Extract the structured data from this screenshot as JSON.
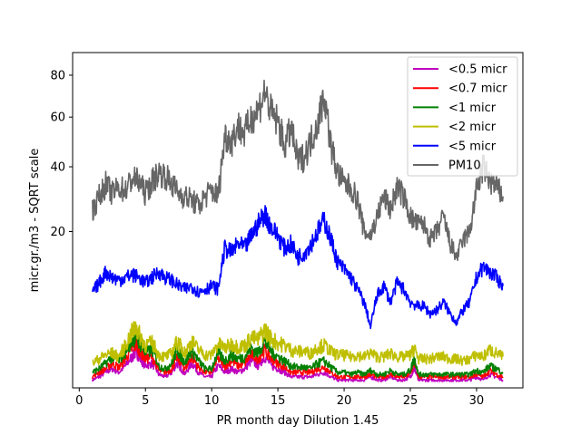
{
  "chart_data": {
    "type": "line",
    "xlabel": "PR month day  Dilution 1.45",
    "ylabel": "micr.gr./m3 - SQRT scale",
    "xlim": [
      -0.5,
      33.5
    ],
    "ylim": [
      0,
      92
    ],
    "y_scale": "sqrt",
    "xticks": [
      0,
      5,
      10,
      15,
      20,
      25,
      30
    ],
    "yticks": [
      20,
      40,
      60,
      80
    ],
    "grid": false,
    "legend_position": "top-right",
    "series": [
      {
        "name": "<0.5 micr",
        "color": "#bf00bf",
        "x": [
          1,
          1.5,
          2,
          2.5,
          3,
          3.5,
          4,
          4.3,
          4.6,
          5,
          5.5,
          6,
          6.5,
          7,
          7.4,
          7.7,
          8,
          8.5,
          9,
          9.5,
          10,
          10.5,
          11,
          11.5,
          12,
          12.5,
          13,
          13.5,
          14,
          14.5,
          15,
          15.5,
          16,
          16.5,
          17,
          17.5,
          18,
          18.5,
          19,
          19.5,
          20,
          20.5,
          21,
          21.5,
          22,
          22.5,
          23,
          23.5,
          24,
          24.5,
          25,
          25.3,
          25.6,
          26,
          26.5,
          27,
          27.5,
          28,
          28.5,
          29,
          29.5,
          30,
          30.5,
          31,
          31.5,
          32
        ],
        "values": [
          0.05,
          0.1,
          0.2,
          0.3,
          0.2,
          0.4,
          0.8,
          1.1,
          0.7,
          0.4,
          0.5,
          0.15,
          0.1,
          0.2,
          0.5,
          0.3,
          0.15,
          0.5,
          0.2,
          0.1,
          0.1,
          0.4,
          0.2,
          0.3,
          0.2,
          0.3,
          0.6,
          0.4,
          0.8,
          0.4,
          0.3,
          0.2,
          0.1,
          0.1,
          0.1,
          0.1,
          0.15,
          0.2,
          0.1,
          0.05,
          0.05,
          0.05,
          0.05,
          0.05,
          0.1,
          0.05,
          0.05,
          0.1,
          0.05,
          0.05,
          0.1,
          0.3,
          0.05,
          0.05,
          0.05,
          0.05,
          0.05,
          0.05,
          0.05,
          0.05,
          0.05,
          0.1,
          0.05,
          0.15,
          0.1,
          0.05
        ]
      },
      {
        "name": "<0.7 micr",
        "color": "#ff0000",
        "x": [
          1,
          1.5,
          2,
          2.5,
          3,
          3.5,
          4,
          4.3,
          4.6,
          5,
          5.5,
          6,
          6.5,
          7,
          7.4,
          7.7,
          8,
          8.5,
          9,
          9.5,
          10,
          10.5,
          11,
          11.5,
          12,
          12.5,
          13,
          13.5,
          14,
          14.5,
          15,
          15.5,
          16,
          16.5,
          17,
          17.5,
          18,
          18.5,
          19,
          19.5,
          20,
          20.5,
          21,
          21.5,
          22,
          22.5,
          23,
          23.5,
          24,
          24.5,
          25,
          25.3,
          25.6,
          26,
          26.5,
          27,
          27.5,
          28,
          28.5,
          29,
          29.5,
          30,
          30.5,
          31,
          31.5,
          32
        ],
        "values": [
          0.1,
          0.2,
          0.3,
          0.5,
          0.35,
          0.7,
          1.3,
          1.6,
          1.1,
          0.7,
          0.8,
          0.25,
          0.2,
          0.3,
          0.8,
          0.5,
          0.3,
          0.8,
          0.35,
          0.2,
          0.2,
          0.7,
          0.4,
          0.6,
          0.4,
          0.5,
          0.9,
          0.7,
          1.2,
          0.7,
          0.5,
          0.35,
          0.2,
          0.2,
          0.2,
          0.2,
          0.3,
          0.35,
          0.2,
          0.1,
          0.1,
          0.1,
          0.1,
          0.1,
          0.15,
          0.1,
          0.1,
          0.15,
          0.1,
          0.1,
          0.15,
          0.5,
          0.1,
          0.1,
          0.1,
          0.1,
          0.1,
          0.1,
          0.1,
          0.1,
          0.1,
          0.15,
          0.1,
          0.25,
          0.15,
          0.1
        ]
      },
      {
        "name": "<1 micr",
        "color": "#008000",
        "x": [
          1,
          1.5,
          2,
          2.5,
          3,
          3.5,
          4,
          4.3,
          4.6,
          5,
          5.5,
          6,
          6.5,
          7,
          7.4,
          7.7,
          8,
          8.5,
          9,
          9.5,
          10,
          10.5,
          11,
          11.5,
          12,
          12.5,
          13,
          13.5,
          14,
          14.5,
          15,
          15.5,
          16,
          16.5,
          17,
          17.5,
          18,
          18.5,
          19,
          19.5,
          20,
          20.5,
          21,
          21.5,
          22,
          22.5,
          23,
          23.5,
          24,
          24.5,
          25,
          25.3,
          25.6,
          26,
          26.5,
          27,
          27.5,
          28,
          28.5,
          29,
          29.5,
          30,
          30.5,
          31,
          31.5,
          32
        ],
        "values": [
          0.2,
          0.3,
          0.5,
          0.8,
          0.6,
          1.1,
          1.9,
          2.3,
          1.6,
          1.0,
          1.2,
          0.4,
          0.3,
          0.5,
          1.2,
          0.8,
          0.5,
          1.2,
          0.6,
          0.3,
          0.3,
          1.0,
          0.6,
          0.9,
          0.7,
          0.8,
          1.3,
          1.0,
          1.8,
          1.1,
          0.8,
          0.6,
          0.4,
          0.35,
          0.35,
          0.3,
          0.5,
          0.6,
          0.35,
          0.2,
          0.2,
          0.15,
          0.2,
          0.15,
          0.25,
          0.15,
          0.15,
          0.25,
          0.15,
          0.15,
          0.25,
          0.7,
          0.15,
          0.15,
          0.15,
          0.15,
          0.15,
          0.15,
          0.15,
          0.15,
          0.15,
          0.25,
          0.2,
          0.4,
          0.3,
          0.2
        ]
      },
      {
        "name": "<2 micr",
        "color": "#bfbf00",
        "x": [
          1,
          1.5,
          2,
          2.5,
          3,
          3.5,
          4,
          4.3,
          4.6,
          5,
          5.5,
          6,
          6.5,
          7,
          7.4,
          7.7,
          8,
          8.5,
          9,
          9.5,
          10,
          10.5,
          11,
          11.5,
          12,
          12.5,
          13,
          13.5,
          14,
          14.5,
          15,
          15.5,
          16,
          16.5,
          17,
          17.5,
          18,
          18.5,
          19,
          19.5,
          20,
          20.5,
          21,
          21.5,
          22,
          22.5,
          23,
          23.5,
          24,
          24.5,
          25,
          25.3,
          25.6,
          26,
          26.5,
          27,
          27.5,
          28,
          28.5,
          29,
          29.5,
          30,
          30.5,
          31,
          31.5,
          32
        ],
        "values": [
          0.5,
          0.7,
          0.9,
          1.0,
          0.8,
          1.5,
          2.6,
          3.0,
          2.2,
          1.5,
          1.7,
          0.9,
          0.8,
          1.0,
          1.8,
          1.4,
          1.0,
          1.8,
          1.2,
          0.9,
          0.9,
          1.6,
          1.3,
          1.6,
          1.4,
          1.5,
          2.1,
          1.9,
          2.8,
          2.0,
          1.7,
          1.5,
          1.2,
          1.1,
          1.1,
          1.0,
          1.4,
          1.5,
          1.1,
          0.9,
          0.9,
          0.8,
          0.9,
          0.8,
          1.0,
          0.8,
          0.8,
          1.0,
          0.8,
          0.8,
          0.9,
          1.3,
          0.7,
          0.7,
          0.7,
          0.8,
          0.8,
          0.7,
          0.7,
          0.6,
          0.7,
          0.9,
          0.8,
          1.2,
          1.0,
          0.8
        ]
      },
      {
        "name": "<5 micr",
        "color": "#0000ff",
        "x": [
          1,
          1.5,
          2,
          2.5,
          3,
          3.5,
          4,
          4.5,
          5,
          5.5,
          6,
          6.5,
          7,
          7.5,
          8,
          8.5,
          9,
          9.5,
          10,
          10.5,
          11,
          11.5,
          12,
          12.5,
          13,
          13.5,
          14,
          14.5,
          15,
          15.5,
          16,
          16.5,
          17,
          17.5,
          18,
          18.5,
          19,
          19.5,
          20,
          20.5,
          21,
          21.5,
          22,
          22.5,
          23,
          23.5,
          24,
          24.5,
          25,
          25.5,
          26,
          26.5,
          27,
          27.5,
          28,
          28.5,
          29,
          29.5,
          30,
          30.5,
          31,
          31.5,
          32
        ],
        "values": [
          7.5,
          9,
          11,
          10,
          9.5,
          10,
          10.5,
          10,
          9,
          10,
          11,
          10,
          9.5,
          8.5,
          8,
          8.5,
          7.5,
          8,
          8.5,
          8,
          16,
          15,
          17,
          16,
          19,
          22,
          25,
          21,
          19,
          16,
          17,
          14,
          15,
          17,
          20,
          23,
          18,
          13,
          11.5,
          10,
          8,
          6,
          3,
          7,
          8.5,
          6,
          9,
          8,
          6,
          5.5,
          5.5,
          4.5,
          5,
          6,
          4.5,
          3.5,
          5,
          6,
          10,
          12,
          11,
          10,
          8.5
        ]
      },
      {
        "name": "PM10",
        "color": "#666666",
        "x": [
          1,
          1.5,
          2,
          2.5,
          3,
          3.5,
          4,
          4.5,
          5,
          5.5,
          6,
          6.5,
          7,
          7.5,
          8,
          8.5,
          9,
          9.5,
          10,
          10.5,
          11,
          11.5,
          12,
          12.5,
          13,
          13.5,
          14,
          14.5,
          15,
          15.5,
          16,
          16.5,
          17,
          17.5,
          18,
          18.5,
          19,
          19.5,
          20,
          20.5,
          21,
          21.5,
          22,
          22.5,
          23,
          23.5,
          24,
          24.5,
          25,
          25.5,
          26,
          26.5,
          27,
          27.5,
          28,
          28.5,
          29,
          29.5,
          30,
          30.5,
          31,
          31.5,
          32
        ],
        "values": [
          26,
          30,
          34,
          31,
          33,
          32,
          36,
          35,
          31,
          35,
          38,
          37,
          34,
          31,
          30,
          29,
          27,
          30,
          32,
          30,
          52,
          50,
          56,
          53,
          60,
          63,
          72,
          62,
          58,
          48,
          55,
          42,
          44,
          50,
          58,
          70,
          48,
          38,
          34,
          33,
          29,
          20,
          19,
          24,
          30,
          26,
          33,
          30,
          24,
          22,
          22,
          18,
          20,
          24,
          17,
          14,
          18,
          20,
          32,
          40,
          35,
          33,
          30
        ]
      }
    ]
  }
}
